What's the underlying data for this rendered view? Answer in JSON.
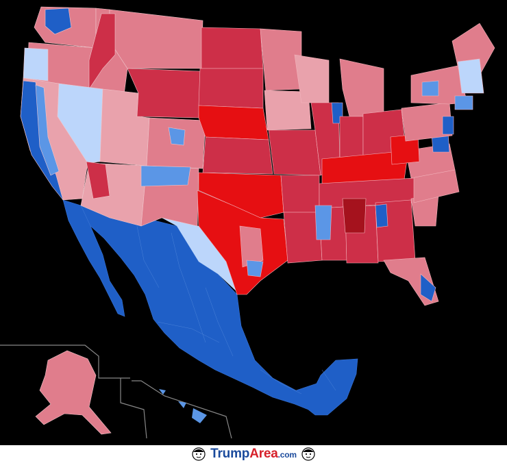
{
  "footer": {
    "brand_part1": "Trump",
    "brand_part2": "Area",
    "brand_part3": ".com"
  },
  "colors": {
    "safe_dem": "#1f5fc7",
    "likely_dem": "#5b96e6",
    "lean_dem": "#bcd6fb",
    "lean_rep": "#e9a2ac",
    "likely_rep": "#e07d8c",
    "safe_rep": "#cd2f48",
    "strong_rep": "#e60f12",
    "darkest_rep": "#a5121d"
  },
  "icons": {
    "face_left": "face-icon",
    "face_right": "face-icon"
  }
}
